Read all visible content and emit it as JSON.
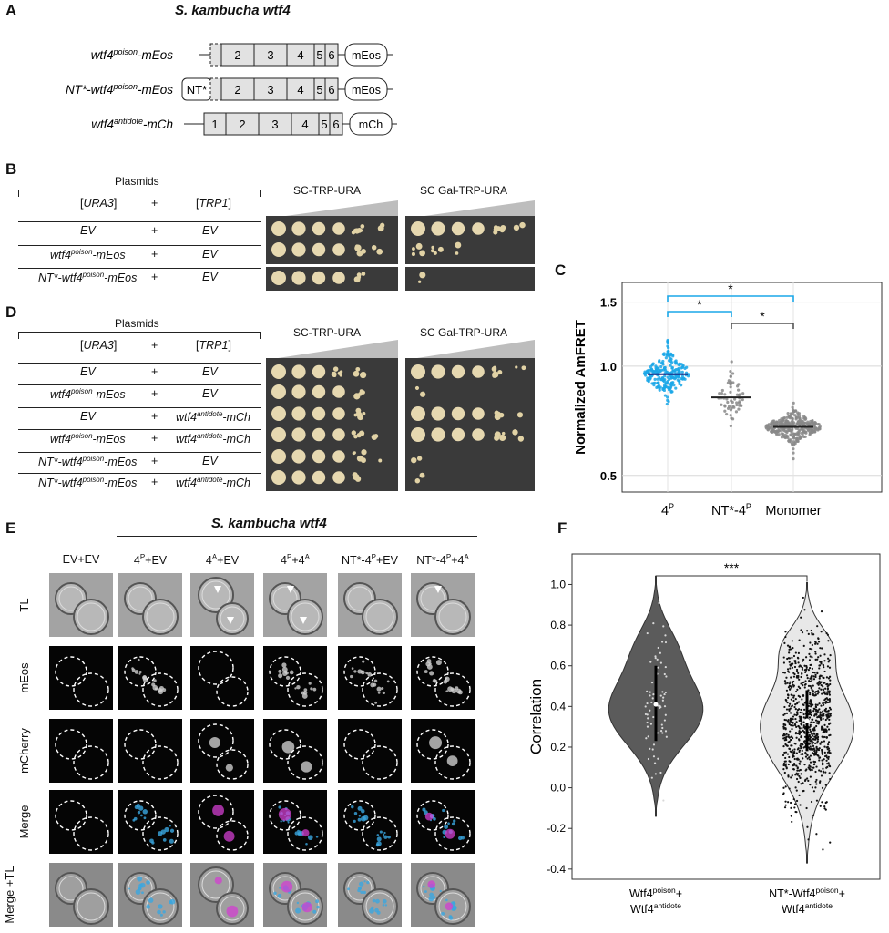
{
  "panels": {
    "a": {
      "letter": "A",
      "title": "S. kambucha wtf4",
      "constructs": [
        {
          "name_base": "wtf4",
          "name_sup": "poison",
          "name_tail": "-mEos",
          "prefix": "",
          "exons": [
            "2",
            "3",
            "4",
            "5",
            "6"
          ],
          "tag": "mEos"
        },
        {
          "name_base": "NT*-wtf4",
          "name_sup": "poison",
          "name_tail": "-mEos",
          "prefix": "NT*",
          "exons": [
            "2",
            "3",
            "4",
            "5",
            "6"
          ],
          "tag": "mEos"
        },
        {
          "name_base": "wtf4",
          "name_sup": "antidote",
          "name_tail": "-mCh",
          "prefix": "",
          "exons": [
            "1",
            "2",
            "3",
            "4",
            "5",
            "6"
          ],
          "tag": "mCh"
        }
      ]
    },
    "b": {
      "letter": "B",
      "plasmids_label": "Plasmids",
      "col_ura": "URA3",
      "col_plus": "+",
      "col_trp": "TRP1",
      "media": [
        "SC-TRP-URA",
        "SC Gal-TRP-URA"
      ],
      "rows": [
        {
          "left": "EV",
          "left_sup": "",
          "left_tail": "",
          "plus": "+",
          "right": "EV",
          "right_sup": "",
          "right_tail": ""
        },
        {
          "left": "wtf4",
          "left_sup": "poison",
          "left_tail": "-mEos",
          "plus": "+",
          "right": "EV",
          "right_sup": "",
          "right_tail": ""
        },
        {
          "left": "NT*-wtf4",
          "left_sup": "poison",
          "left_tail": "-mEos",
          "plus": "+",
          "right": "EV",
          "right_sup": "",
          "right_tail": ""
        }
      ]
    },
    "c": {
      "letter": "C"
    },
    "d": {
      "letter": "D",
      "plasmids_label": "Plasmids",
      "col_ura": "URA3",
      "col_plus": "+",
      "col_trp": "TRP1",
      "media": [
        "SC-TRP-URA",
        "SC Gal-TRP-URA"
      ],
      "rows": [
        {
          "left": "EV",
          "left_sup": "",
          "left_tail": "",
          "plus": "+",
          "right": "EV",
          "right_sup": "",
          "right_tail": ""
        },
        {
          "left": "wtf4",
          "left_sup": "poison",
          "left_tail": "-mEos",
          "plus": "+",
          "right": "EV",
          "right_sup": "",
          "right_tail": ""
        },
        {
          "left": "EV",
          "left_sup": "",
          "left_tail": "",
          "plus": "+",
          "right": "wtf4",
          "right_sup": "antidote",
          "right_tail": "-mCh"
        },
        {
          "left": "wtf4",
          "left_sup": "poison",
          "left_tail": "-mEos",
          "plus": "+",
          "right": "wtf4",
          "right_sup": "antidote",
          "right_tail": "-mCh"
        },
        {
          "left": "NT*-wtf4",
          "left_sup": "poison",
          "left_tail": "-mEos",
          "plus": "+",
          "right": "EV",
          "right_sup": "",
          "right_tail": ""
        },
        {
          "left": "NT*-wtf4",
          "left_sup": "poison",
          "left_tail": "-mEos",
          "plus": "+",
          "right": "wtf4",
          "right_sup": "antidote",
          "right_tail": "-mCh"
        }
      ]
    },
    "e": {
      "letter": "E",
      "title": "S. kambucha wtf4",
      "columns": [
        {
          "base": "EV+EV",
          "sup1": "",
          "mid": "",
          "sup2": ""
        },
        {
          "base": "4",
          "sup1": "P",
          "mid": "+EV",
          "sup2": ""
        },
        {
          "base": "4",
          "sup1": "A",
          "mid": "+EV",
          "sup2": ""
        },
        {
          "base": "4",
          "sup1": "P",
          "mid": "+4",
          "sup2": "A"
        },
        {
          "base": "NT*-4",
          "sup1": "P",
          "mid": "+EV",
          "sup2": ""
        },
        {
          "base": "NT*-4",
          "sup1": "P",
          "mid": "+4",
          "sup2": "A"
        }
      ],
      "rows": [
        "TL",
        "mEos",
        "mCherry",
        "Merge",
        "Merge +TL"
      ]
    },
    "f": {
      "letter": "F"
    }
  },
  "chart_data": [
    {
      "panel": "C",
      "type": "scatter",
      "ylabel": "Normalized AmFRET",
      "yscale": "log",
      "ylim": [
        0.45,
        1.7
      ],
      "yticks": [
        "0.5",
        "1.0",
        "1.5"
      ],
      "categories": [
        {
          "base": "4",
          "sup": "P"
        },
        {
          "base": "NT*-4",
          "sup": "P"
        },
        {
          "base": "Monomer",
          "sup": ""
        }
      ],
      "series": [
        {
          "category": 0,
          "median": 0.95,
          "color": "#1aa7e8"
        },
        {
          "category": 1,
          "median": 0.82,
          "color": "#888888"
        },
        {
          "category": 2,
          "median": 0.68,
          "color": "#888888"
        }
      ],
      "significance": [
        {
          "from": 0,
          "to": 1,
          "label": "*",
          "color": "#1aa7e8"
        },
        {
          "from": 0,
          "to": 2,
          "label": "*",
          "color": "#1aa7e8"
        },
        {
          "from": 1,
          "to": 2,
          "label": "*",
          "color": "#555555"
        }
      ],
      "grid": true
    },
    {
      "panel": "F",
      "type": "violin",
      "ylabel": "Correlation",
      "ylim": [
        -0.45,
        1.15
      ],
      "yticks": [
        "-0.4",
        "-0.2",
        "0.0",
        "0.2",
        "0.4",
        "0.6",
        "0.8",
        "1.0"
      ],
      "categories": [
        {
          "line1": "Wtf4",
          "sup1": "poison",
          "tail1": "+",
          "line2": "Wtf4",
          "sup2": "antidote"
        },
        {
          "line1": "NT*-Wtf4",
          "sup1": "poison",
          "tail1": "+",
          "line2": "Wtf4",
          "sup2": "antidote"
        }
      ],
      "series": [
        {
          "category": 0,
          "median": 0.41,
          "q1": 0.23,
          "q3": 0.6,
          "min": -0.14,
          "max": 1.05,
          "fill": "#5b5b5b"
        },
        {
          "category": 1,
          "median": 0.33,
          "q1": 0.18,
          "q3": 0.48,
          "min": -0.37,
          "max": 1.02,
          "fill": "#e8e8e8"
        }
      ],
      "significance": {
        "label": "***"
      }
    }
  ]
}
